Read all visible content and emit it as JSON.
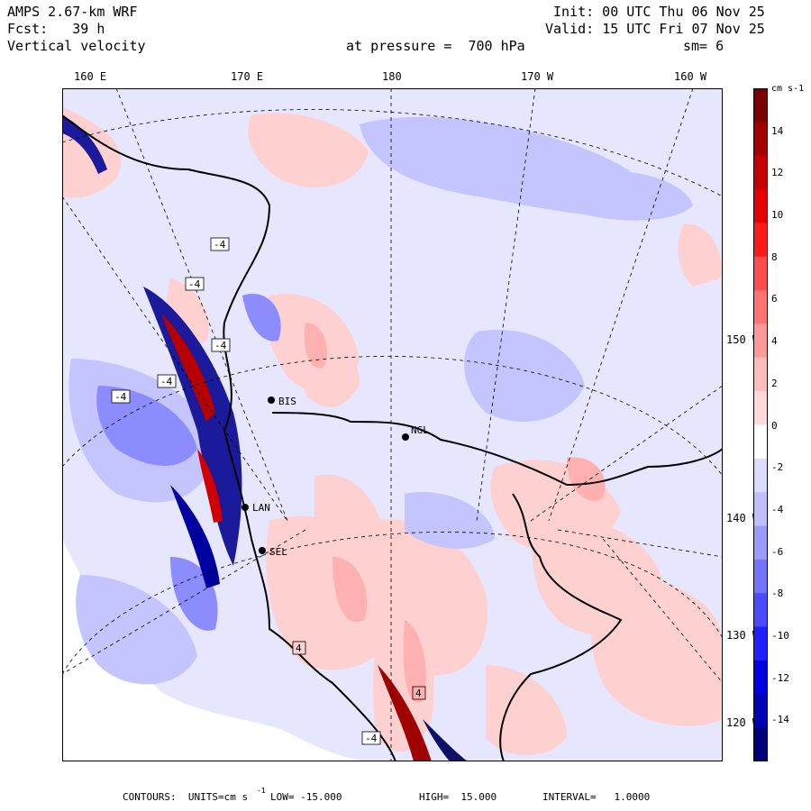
{
  "header": {
    "model": "AMPS 2.67-km WRF",
    "forecast": "Fcst:   39 h",
    "field": "Vertical velocity",
    "level": "at pressure =  700 hPa",
    "init": "Init: 00 UTC Thu 06 Nov 25",
    "valid": "Valid: 15 UTC Fri 07 Nov 25",
    "smoothing": "sm= 6"
  },
  "lon_labels": [
    "160 E",
    "170 E",
    "180",
    "170 W",
    "160 W"
  ],
  "lat_labels": [
    "150 W",
    "140 W",
    "130 W",
    "120 W"
  ],
  "stations": [
    {
      "code": "BIS"
    },
    {
      "code": "NGL"
    },
    {
      "code": "LAN"
    },
    {
      "code": "SEL"
    }
  ],
  "contour_labels": [
    "-4",
    "-4",
    "-4",
    "-4",
    "4",
    "4",
    "-4",
    "-4"
  ],
  "colorbar": {
    "units": "cm s-1",
    "ticks": [
      "14",
      "12",
      "10",
      "8",
      "6",
      "4",
      "2",
      "0",
      "-2",
      "-4",
      "-6",
      "-8",
      "-10",
      "-12",
      "-14"
    ],
    "colors": [
      "#7a0000",
      "#a50000",
      "#c80000",
      "#e60000",
      "#ff1a1a",
      "#ff4d4d",
      "#ff7373",
      "#ff9999",
      "#ffbcbc",
      "#ffdada",
      "#ffffff",
      "#dcdcff",
      "#bfbfff",
      "#9b9bff",
      "#7373ff",
      "#4a4aff",
      "#1f1fff",
      "#0000e6",
      "#0000b4",
      "#00007a"
    ]
  },
  "footer": {
    "contours": "CONTOURS:  UNITS=cm s",
    "units_exp": "-1",
    "low": "LOW= -15.000",
    "high": "HIGH=  15.000",
    "interval": "INTERVAL=   1.0000"
  }
}
